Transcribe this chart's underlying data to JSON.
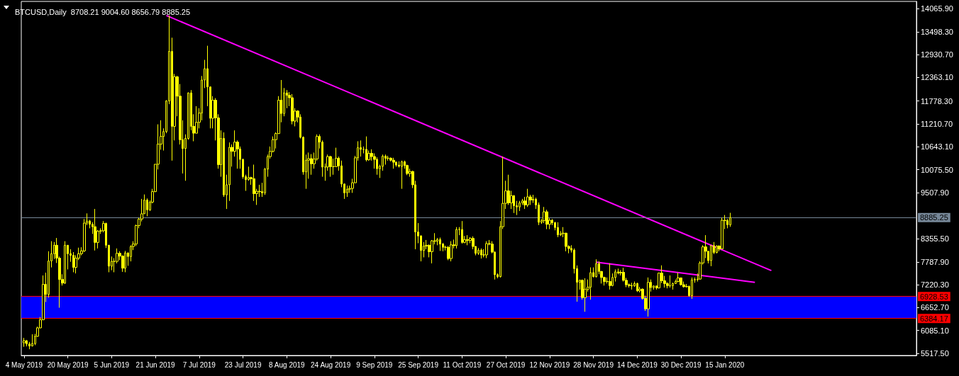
{
  "chart_data": {
    "type": "candlestick",
    "title": "BTCUSD,Daily  8708.21 9004.60 8656.79 8885.25",
    "color": "#ffff00",
    "x": [
      "2019-05-04",
      "2019-05-05",
      "2019-05-06",
      "2019-05-07",
      "2019-05-08",
      "2019-05-09",
      "2019-05-10",
      "2019-05-11",
      "2019-05-12",
      "2019-05-13",
      "2019-05-14",
      "2019-05-15",
      "2019-05-16",
      "2019-05-17",
      "2019-05-18",
      "2019-05-19",
      "2019-05-20",
      "2019-05-21",
      "2019-05-22",
      "2019-05-23",
      "2019-05-24",
      "2019-05-25",
      "2019-05-26",
      "2019-05-27",
      "2019-05-28",
      "2019-05-29",
      "2019-05-30",
      "2019-05-31",
      "2019-06-01",
      "2019-06-02",
      "2019-06-03",
      "2019-06-04",
      "2019-06-05",
      "2019-06-06",
      "2019-06-07",
      "2019-06-08",
      "2019-06-09",
      "2019-06-10",
      "2019-06-11",
      "2019-06-12",
      "2019-06-13",
      "2019-06-14",
      "2019-06-15",
      "2019-06-16",
      "2019-06-17",
      "2019-06-18",
      "2019-06-19",
      "2019-06-20",
      "2019-06-21",
      "2019-06-22",
      "2019-06-23",
      "2019-06-24",
      "2019-06-25",
      "2019-06-26",
      "2019-06-27",
      "2019-06-28",
      "2019-06-29",
      "2019-06-30",
      "2019-07-01",
      "2019-07-02",
      "2019-07-03",
      "2019-07-04",
      "2019-07-05",
      "2019-07-06",
      "2019-07-07",
      "2019-07-08",
      "2019-07-09",
      "2019-07-10",
      "2019-07-11",
      "2019-07-12",
      "2019-07-13",
      "2019-07-14",
      "2019-07-15",
      "2019-07-16",
      "2019-07-17",
      "2019-07-18",
      "2019-07-19",
      "2019-07-20",
      "2019-07-21",
      "2019-07-22",
      "2019-07-23",
      "2019-07-24",
      "2019-07-25",
      "2019-07-26",
      "2019-07-27",
      "2019-07-28",
      "2019-07-29",
      "2019-07-30",
      "2019-07-31",
      "2019-08-01",
      "2019-08-02",
      "2019-08-03",
      "2019-08-04",
      "2019-08-05",
      "2019-08-06",
      "2019-08-07",
      "2019-08-08",
      "2019-08-09",
      "2019-08-10",
      "2019-08-11",
      "2019-08-12",
      "2019-08-13",
      "2019-08-14",
      "2019-08-15",
      "2019-08-16",
      "2019-08-17",
      "2019-08-18",
      "2019-08-19",
      "2019-08-20",
      "2019-08-21",
      "2019-08-22",
      "2019-08-23",
      "2019-08-24",
      "2019-08-25",
      "2019-08-26",
      "2019-08-27",
      "2019-08-28",
      "2019-08-29",
      "2019-08-30",
      "2019-08-31",
      "2019-09-01",
      "2019-09-02",
      "2019-09-03",
      "2019-09-04",
      "2019-09-05",
      "2019-09-06",
      "2019-09-07",
      "2019-09-08",
      "2019-09-09",
      "2019-09-10",
      "2019-09-11",
      "2019-09-12",
      "2019-09-13",
      "2019-09-14",
      "2019-09-15",
      "2019-09-16",
      "2019-09-17",
      "2019-09-18",
      "2019-09-19",
      "2019-09-20",
      "2019-09-21",
      "2019-09-22",
      "2019-09-23",
      "2019-09-24",
      "2019-09-25",
      "2019-09-26",
      "2019-09-27",
      "2019-09-28",
      "2019-09-29",
      "2019-09-30",
      "2019-10-01",
      "2019-10-02",
      "2019-10-03",
      "2019-10-04",
      "2019-10-05",
      "2019-10-06",
      "2019-10-07",
      "2019-10-08",
      "2019-10-09",
      "2019-10-10",
      "2019-10-11",
      "2019-10-12",
      "2019-10-13",
      "2019-10-14",
      "2019-10-15",
      "2019-10-16",
      "2019-10-17",
      "2019-10-18",
      "2019-10-19",
      "2019-10-20",
      "2019-10-21",
      "2019-10-22",
      "2019-10-23",
      "2019-10-24",
      "2019-10-25",
      "2019-10-26",
      "2019-10-27",
      "2019-10-28",
      "2019-10-29",
      "2019-10-30",
      "2019-10-31",
      "2019-11-01",
      "2019-11-02",
      "2019-11-03",
      "2019-11-04",
      "2019-11-05",
      "2019-11-06",
      "2019-11-07",
      "2019-11-08",
      "2019-11-09",
      "2019-11-10",
      "2019-11-11",
      "2019-11-12",
      "2019-11-13",
      "2019-11-14",
      "2019-11-15",
      "2019-11-16",
      "2019-11-17",
      "2019-11-18",
      "2019-11-19",
      "2019-11-20",
      "2019-11-21",
      "2019-11-22",
      "2019-11-23",
      "2019-11-24",
      "2019-11-25",
      "2019-11-26",
      "2019-11-27",
      "2019-11-28",
      "2019-11-29",
      "2019-11-30",
      "2019-12-01",
      "2019-12-02",
      "2019-12-03",
      "2019-12-04",
      "2019-12-05",
      "2019-12-06",
      "2019-12-07",
      "2019-12-08",
      "2019-12-09",
      "2019-12-10",
      "2019-12-11",
      "2019-12-12",
      "2019-12-13",
      "2019-12-14",
      "2019-12-15",
      "2019-12-16",
      "2019-12-17",
      "2019-12-18",
      "2019-12-19",
      "2019-12-20",
      "2019-12-21",
      "2019-12-22",
      "2019-12-23",
      "2019-12-24",
      "2019-12-25",
      "2019-12-26",
      "2019-12-27",
      "2019-12-28",
      "2019-12-29",
      "2019-12-30",
      "2019-12-31",
      "2020-01-01",
      "2020-01-02",
      "2020-01-03",
      "2020-01-04",
      "2020-01-05",
      "2020-01-06",
      "2020-01-07",
      "2020-01-08",
      "2020-01-09",
      "2020-01-10",
      "2020-01-11",
      "2020-01-12",
      "2020-01-13",
      "2020-01-14",
      "2020-01-15",
      "2020-01-16",
      "2020-01-17"
    ],
    "ohlc": [
      [
        5780,
        5900,
        5680,
        5830
      ],
      [
        5830,
        5850,
        5690,
        5750
      ],
      [
        5750,
        5800,
        5620,
        5700
      ],
      [
        5700,
        5990,
        5690,
        5760
      ],
      [
        5760,
        6000,
        5720,
        5940
      ],
      [
        5940,
        6180,
        5930,
        6150
      ],
      [
        6150,
        6420,
        6140,
        6350
      ],
      [
        6350,
        7450,
        6350,
        7230
      ],
      [
        7230,
        7520,
        6790,
        6980
      ],
      [
        6980,
        8050,
        6900,
        7810
      ],
      [
        7810,
        8300,
        7650,
        7990
      ],
      [
        7990,
        8280,
        7860,
        8200
      ],
      [
        8200,
        8380,
        7760,
        7880
      ],
      [
        7880,
        7920,
        6650,
        7350
      ],
      [
        7350,
        7480,
        7200,
        7260
      ],
      [
        7260,
        8300,
        7240,
        8200
      ],
      [
        8200,
        8200,
        7600,
        7990
      ],
      [
        7990,
        8100,
        7790,
        7950
      ],
      [
        7950,
        8030,
        7530,
        7650
      ],
      [
        7650,
        7950,
        7500,
        7880
      ],
      [
        7880,
        8140,
        7830,
        7990
      ],
      [
        7990,
        8150,
        7950,
        8060
      ],
      [
        8060,
        8850,
        8030,
        8750
      ],
      [
        8750,
        8990,
        8700,
        8800
      ],
      [
        8800,
        8830,
        8620,
        8720
      ],
      [
        8720,
        8770,
        8480,
        8660
      ],
      [
        8660,
        9100,
        8070,
        8270
      ],
      [
        8270,
        8580,
        8120,
        8550
      ],
      [
        8550,
        8620,
        8480,
        8560
      ],
      [
        8560,
        8800,
        8520,
        8740
      ],
      [
        8740,
        8760,
        8130,
        8200
      ],
      [
        8200,
        8210,
        7530,
        7680
      ],
      [
        7680,
        7920,
        7580,
        7800
      ],
      [
        7800,
        7880,
        7530,
        7800
      ],
      [
        7800,
        8120,
        7750,
        8000
      ],
      [
        8000,
        8050,
        7830,
        7930
      ],
      [
        7930,
        7950,
        7540,
        7630
      ],
      [
        7630,
        8060,
        7530,
        8010
      ],
      [
        8010,
        8020,
        7690,
        7920
      ],
      [
        7920,
        8200,
        7800,
        8170
      ],
      [
        8170,
        8300,
        8080,
        8230
      ],
      [
        8230,
        8710,
        8180,
        8690
      ],
      [
        8690,
        8880,
        8620,
        8850
      ],
      [
        8850,
        9350,
        8790,
        8980
      ],
      [
        8980,
        9460,
        8980,
        9320
      ],
      [
        9320,
        9360,
        8920,
        9080
      ],
      [
        9080,
        9310,
        9050,
        9270
      ],
      [
        9270,
        9600,
        9240,
        9530
      ],
      [
        9530,
        10210,
        9520,
        10210
      ],
      [
        10210,
        11200,
        10080,
        10710
      ],
      [
        10710,
        11300,
        10570,
        10900
      ],
      [
        10900,
        11100,
        10550,
        11020
      ],
      [
        11020,
        11800,
        10980,
        11780
      ],
      [
        11780,
        13900,
        11700,
        13010
      ],
      [
        13010,
        13350,
        10300,
        11150
      ],
      [
        11150,
        12450,
        10800,
        12380
      ],
      [
        12380,
        12400,
        11400,
        11900
      ],
      [
        11900,
        12200,
        10700,
        10820
      ],
      [
        10820,
        11300,
        9980,
        10600
      ],
      [
        10600,
        10950,
        9800,
        10850
      ],
      [
        10850,
        11990,
        10820,
        11980
      ],
      [
        11980,
        12050,
        11050,
        11150
      ],
      [
        11150,
        11450,
        10780,
        10980
      ],
      [
        10980,
        11650,
        10980,
        11250
      ],
      [
        11250,
        11600,
        11100,
        11480
      ],
      [
        11480,
        12400,
        11300,
        12300
      ],
      [
        12300,
        12800,
        12100,
        12580
      ],
      [
        12580,
        13150,
        11650,
        12130
      ],
      [
        12130,
        12130,
        11100,
        11350
      ],
      [
        11350,
        11900,
        11100,
        11800
      ],
      [
        11800,
        11850,
        10800,
        11360
      ],
      [
        11360,
        11450,
        10100,
        10200
      ],
      [
        10200,
        11050,
        9900,
        10850
      ],
      [
        10850,
        11000,
        9400,
        9450
      ],
      [
        9450,
        9950,
        9100,
        9700
      ],
      [
        9700,
        10750,
        9300,
        10630
      ],
      [
        10630,
        10700,
        10150,
        10530
      ],
      [
        10530,
        11050,
        10400,
        10760
      ],
      [
        10760,
        10800,
        10100,
        10590
      ],
      [
        10590,
        10650,
        10100,
        10330
      ],
      [
        10330,
        10350,
        9850,
        9900
      ],
      [
        9900,
        9950,
        9550,
        9830
      ],
      [
        9830,
        10150,
        9800,
        9880
      ],
      [
        9880,
        9900,
        9700,
        9850
      ],
      [
        9850,
        10200,
        9300,
        9480
      ],
      [
        9480,
        9600,
        9200,
        9540
      ],
      [
        9540,
        9700,
        9400,
        9530
      ],
      [
        9530,
        9750,
        9400,
        9500
      ],
      [
        9500,
        10120,
        9450,
        10090
      ],
      [
        10090,
        10450,
        9900,
        10400
      ],
      [
        10400,
        10650,
        10350,
        10530
      ],
      [
        10530,
        10900,
        10500,
        10820
      ],
      [
        10820,
        11000,
        10600,
        10970
      ],
      [
        10970,
        11900,
        10960,
        11800
      ],
      [
        11800,
        12300,
        11250,
        11470
      ],
      [
        11470,
        12100,
        11400,
        11980
      ],
      [
        11980,
        12050,
        11600,
        11920
      ],
      [
        11920,
        12000,
        11650,
        11860
      ],
      [
        11860,
        11950,
        11200,
        11280
      ],
      [
        11280,
        11600,
        11150,
        11530
      ],
      [
        11530,
        11550,
        11250,
        11380
      ],
      [
        11380,
        11450,
        10850,
        10880
      ],
      [
        10880,
        10900,
        9950,
        10020
      ],
      [
        10020,
        10450,
        9600,
        10310
      ],
      [
        10310,
        10500,
        9850,
        10350
      ],
      [
        10350,
        10460,
        9950,
        10220
      ],
      [
        10220,
        10500,
        10100,
        10340
      ],
      [
        10340,
        10950,
        10300,
        10900
      ],
      [
        10900,
        10950,
        10600,
        10760
      ],
      [
        10760,
        10800,
        9900,
        10140
      ],
      [
        10140,
        10230,
        9800,
        10140
      ],
      [
        10140,
        10450,
        10050,
        10400
      ],
      [
        10400,
        10420,
        9900,
        10150
      ],
      [
        10150,
        10350,
        9950,
        10150
      ],
      [
        10150,
        10620,
        10150,
        10360
      ],
      [
        10360,
        10400,
        10050,
        10170
      ],
      [
        10170,
        10300,
        9640,
        9720
      ],
      [
        9720,
        9730,
        9350,
        9500
      ],
      [
        9500,
        9680,
        9400,
        9590
      ],
      [
        9590,
        9680,
        9500,
        9610
      ],
      [
        9610,
        9850,
        9500,
        9750
      ],
      [
        9750,
        10420,
        9750,
        10370
      ],
      [
        10370,
        10780,
        10300,
        10620
      ],
      [
        10620,
        10800,
        10400,
        10580
      ],
      [
        10580,
        10650,
        10480,
        10580
      ],
      [
        10580,
        10900,
        10280,
        10320
      ],
      [
        10320,
        10550,
        10300,
        10480
      ],
      [
        10480,
        10580,
        10300,
        10400
      ],
      [
        10400,
        10480,
        10100,
        10330
      ],
      [
        10330,
        10380,
        9950,
        10100
      ],
      [
        10100,
        10200,
        9870,
        10160
      ],
      [
        10160,
        10450,
        10050,
        10410
      ],
      [
        10410,
        10450,
        10200,
        10360
      ],
      [
        10360,
        10420,
        10300,
        10360
      ],
      [
        10360,
        10380,
        10280,
        10310
      ],
      [
        10310,
        10370,
        10100,
        10260
      ],
      [
        10260,
        10280,
        10150,
        10190
      ],
      [
        10190,
        10280,
        10130,
        10160
      ],
      [
        10160,
        10300,
        9600,
        10270
      ],
      [
        10270,
        10300,
        10100,
        10180
      ],
      [
        10180,
        10200,
        9940,
        9980
      ],
      [
        9980,
        10100,
        9900,
        10030
      ],
      [
        10030,
        10050,
        9620,
        9700
      ],
      [
        9700,
        9800,
        8100,
        8530
      ],
      [
        8530,
        8750,
        8250,
        8430
      ],
      [
        8430,
        8450,
        7800,
        8070
      ],
      [
        8070,
        8280,
        7900,
        8180
      ],
      [
        8180,
        8330,
        8100,
        8200
      ],
      [
        8200,
        8220,
        7900,
        8040
      ],
      [
        8040,
        8330,
        7750,
        8310
      ],
      [
        8310,
        8500,
        8220,
        8300
      ],
      [
        8300,
        8380,
        8200,
        8340
      ],
      [
        8340,
        8390,
        8060,
        8230
      ],
      [
        8230,
        8260,
        8050,
        8150
      ],
      [
        8150,
        8190,
        8070,
        8150
      ],
      [
        8150,
        8180,
        7830,
        7870
      ],
      [
        7870,
        8300,
        7800,
        8210
      ],
      [
        8210,
        8340,
        8120,
        8190
      ],
      [
        8190,
        8650,
        8120,
        8590
      ],
      [
        8590,
        8650,
        8450,
        8590
      ],
      [
        8590,
        8800,
        8240,
        8270
      ],
      [
        8270,
        8430,
        8250,
        8340
      ],
      [
        8340,
        8450,
        8200,
        8320
      ],
      [
        8320,
        8400,
        8250,
        8370
      ],
      [
        8370,
        8420,
        8100,
        8170
      ],
      [
        8170,
        8180,
        7950,
        8000
      ],
      [
        8000,
        8130,
        7960,
        8080
      ],
      [
        8080,
        8120,
        7870,
        7960
      ],
      [
        7960,
        8100,
        7900,
        7960
      ],
      [
        7960,
        8300,
        7880,
        8240
      ],
      [
        8240,
        8330,
        8200,
        8230
      ],
      [
        8230,
        8300,
        8000,
        8030
      ],
      [
        8030,
        8050,
        7350,
        7470
      ],
      [
        7470,
        7500,
        7380,
        7420
      ],
      [
        7420,
        8800,
        7400,
        8660
      ],
      [
        8660,
        10400,
        8600,
        9240
      ],
      [
        9240,
        9800,
        9100,
        9550
      ],
      [
        9550,
        9950,
        9200,
        9250
      ],
      [
        9250,
        9550,
        9100,
        9430
      ],
      [
        9430,
        9440,
        9000,
        9180
      ],
      [
        9180,
        9300,
        8950,
        9150
      ],
      [
        9150,
        9300,
        9050,
        9250
      ],
      [
        9250,
        9350,
        9200,
        9300
      ],
      [
        9300,
        9400,
        9100,
        9200
      ],
      [
        9200,
        9600,
        9150,
        9400
      ],
      [
        9400,
        9450,
        9200,
        9320
      ],
      [
        9320,
        9450,
        9250,
        9340
      ],
      [
        9340,
        9380,
        9100,
        9200
      ],
      [
        9200,
        9260,
        8700,
        8770
      ],
      [
        8770,
        8850,
        8730,
        8810
      ],
      [
        8810,
        9150,
        8750,
        9030
      ],
      [
        9030,
        9080,
        8600,
        8720
      ],
      [
        8720,
        8870,
        8600,
        8820
      ],
      [
        8820,
        8850,
        8700,
        8760
      ],
      [
        8760,
        8780,
        8570,
        8640
      ],
      [
        8640,
        8770,
        8400,
        8460
      ],
      [
        8460,
        8550,
        8430,
        8490
      ],
      [
        8490,
        8650,
        8400,
        8500
      ],
      [
        8500,
        8510,
        8050,
        8170
      ],
      [
        8170,
        8200,
        8000,
        8120
      ],
      [
        8120,
        8200,
        8020,
        8080
      ],
      [
        8080,
        8120,
        7500,
        7620
      ],
      [
        7620,
        7700,
        6800,
        7280
      ],
      [
        7280,
        7350,
        7100,
        7330
      ],
      [
        7330,
        7350,
        6850,
        6900
      ],
      [
        6900,
        7380,
        6550,
        7110
      ],
      [
        7110,
        7350,
        7050,
        7160
      ],
      [
        7160,
        7650,
        6850,
        7520
      ],
      [
        7520,
        7650,
        7400,
        7420
      ],
      [
        7420,
        7850,
        7400,
        7740
      ],
      [
        7740,
        7800,
        7480,
        7550
      ],
      [
        7550,
        7560,
        7250,
        7400
      ],
      [
        7400,
        7420,
        7200,
        7300
      ],
      [
        7300,
        7400,
        7250,
        7300
      ],
      [
        7300,
        7750,
        7100,
        7200
      ],
      [
        7200,
        7500,
        7180,
        7400
      ],
      [
        7400,
        7600,
        7300,
        7540
      ],
      [
        7540,
        7620,
        7480,
        7510
      ],
      [
        7510,
        7580,
        7450,
        7530
      ],
      [
        7530,
        7640,
        7300,
        7330
      ],
      [
        7330,
        7390,
        7160,
        7220
      ],
      [
        7220,
        7250,
        7150,
        7200
      ],
      [
        7200,
        7270,
        7100,
        7190
      ],
      [
        7190,
        7300,
        7170,
        7250
      ],
      [
        7250,
        7270,
        7040,
        7070
      ],
      [
        7070,
        7170,
        7030,
        7110
      ],
      [
        7110,
        7130,
        6850,
        6880
      ],
      [
        6880,
        6950,
        6570,
        6620
      ],
      [
        6620,
        7400,
        6430,
        7280
      ],
      [
        7280,
        7350,
        7050,
        7150
      ],
      [
        7150,
        7200,
        7100,
        7190
      ],
      [
        7190,
        7200,
        7100,
        7140
      ],
      [
        7140,
        7520,
        7130,
        7510
      ],
      [
        7510,
        7700,
        7260,
        7320
      ],
      [
        7320,
        7440,
        7150,
        7250
      ],
      [
        7250,
        7280,
        7130,
        7200
      ],
      [
        7200,
        7450,
        7150,
        7200
      ],
      [
        7200,
        7270,
        7100,
        7250
      ],
      [
        7250,
        7350,
        7240,
        7300
      ],
      [
        7300,
        7520,
        7280,
        7390
      ],
      [
        7390,
        7400,
        7200,
        7220
      ],
      [
        7220,
        7300,
        7150,
        7170
      ],
      [
        7170,
        7240,
        7150,
        7180
      ],
      [
        7180,
        7200,
        6920,
        6950
      ],
      [
        6950,
        7400,
        6870,
        7340
      ],
      [
        7340,
        7400,
        7270,
        7350
      ],
      [
        7350,
        7500,
        7300,
        7360
      ],
      [
        7360,
        7800,
        7350,
        7760
      ],
      [
        7760,
        8200,
        7720,
        8160
      ],
      [
        8160,
        8450,
        7880,
        8050
      ],
      [
        8050,
        8060,
        7750,
        7820
      ],
      [
        7820,
        8200,
        7680,
        8190
      ],
      [
        8190,
        8280,
        7980,
        8020
      ],
      [
        8020,
        8200,
        8000,
        8180
      ],
      [
        8180,
        8200,
        8050,
        8110
      ],
      [
        8110,
        8880,
        8100,
        8820
      ],
      [
        8820,
        8950,
        8600,
        8810
      ],
      [
        8810,
        8850,
        8620,
        8710
      ],
      [
        8708.21,
        9004.6,
        8656.79,
        8885.25
      ]
    ],
    "series": [
      {
        "type": "line",
        "color": "#ff00ff",
        "x": [
          "2019-06-25",
          "2020-02-01"
        ],
        "values": [
          13900,
          7570
        ]
      },
      {
        "type": "line",
        "color": "#ff00ff",
        "x": [
          "2019-11-29",
          "2020-01-26"
        ],
        "values": [
          7780,
          7280
        ]
      }
    ],
    "ref_lines": [
      {
        "axis": "y",
        "value": 8885.25,
        "label": "8885.25",
        "color": "#778899"
      },
      {
        "axis": "y",
        "value": 6928.53,
        "label": "6928.53",
        "color": "#ff0000"
      },
      {
        "axis": "y",
        "value": 6384.17,
        "label": "6384.17",
        "color": "#ff0000"
      }
    ],
    "bands": [
      {
        "axis": "y",
        "from": 6384.17,
        "to": 6928.53,
        "color": "#0000ff"
      }
    ],
    "xlim": [
      "2019-05-03",
      "2020-03-25"
    ],
    "xticks": [
      {
        "value": "2019-05-04",
        "label": "4 May 2019"
      },
      {
        "value": "2019-05-20",
        "label": "20 May 2019"
      },
      {
        "value": "2019-06-05",
        "label": "5 Jun 2019"
      },
      {
        "value": "2019-06-21",
        "label": "21 Jun 2019"
      },
      {
        "value": "2019-07-07",
        "label": "7 Jul 2019"
      },
      {
        "value": "2019-07-23",
        "label": "23 Jul 2019"
      },
      {
        "value": "2019-08-08",
        "label": "8 Aug 2019"
      },
      {
        "value": "2019-08-24",
        "label": "24 Aug 2019"
      },
      {
        "value": "2019-09-09",
        "label": "9 Sep 2019"
      },
      {
        "value": "2019-09-25",
        "label": "25 Sep 2019"
      },
      {
        "value": "2019-10-11",
        "label": "11 Oct 2019"
      },
      {
        "value": "2019-10-27",
        "label": "27 Oct 2019"
      },
      {
        "value": "2019-11-12",
        "label": "12 Nov 2019"
      },
      {
        "value": "2019-11-28",
        "label": "28 Nov 2019"
      },
      {
        "value": "2019-12-14",
        "label": "14 Dec 2019"
      },
      {
        "value": "2019-12-30",
        "label": "30 Dec 2019"
      },
      {
        "value": "2020-01-15",
        "label": "15 Jan 2020"
      }
    ],
    "ylim": [
      5465,
      14250
    ],
    "yticks": [
      {
        "value": 14065.9,
        "label": "14065.90"
      },
      {
        "value": 13498.3,
        "label": "13498.30"
      },
      {
        "value": 12930.7,
        "label": "12930.70"
      },
      {
        "value": 12363.1,
        "label": "12363.10"
      },
      {
        "value": 11778.3,
        "label": "11778.30"
      },
      {
        "value": 11210.7,
        "label": "11210.70"
      },
      {
        "value": 10643.1,
        "label": "10643.10"
      },
      {
        "value": 10075.5,
        "label": "10075.50"
      },
      {
        "value": 9507.9,
        "label": "9507.90"
      },
      {
        "value": 8355.5,
        "label": "8355.50"
      },
      {
        "value": 7787.9,
        "label": "7787.90"
      },
      {
        "value": 7220.3,
        "label": "7220.30"
      },
      {
        "value": 6652.7,
        "label": "6652.70"
      },
      {
        "value": 6085.1,
        "label": "6085.10"
      },
      {
        "value": 5517.5,
        "label": "5517.50"
      }
    ],
    "grid": false
  }
}
